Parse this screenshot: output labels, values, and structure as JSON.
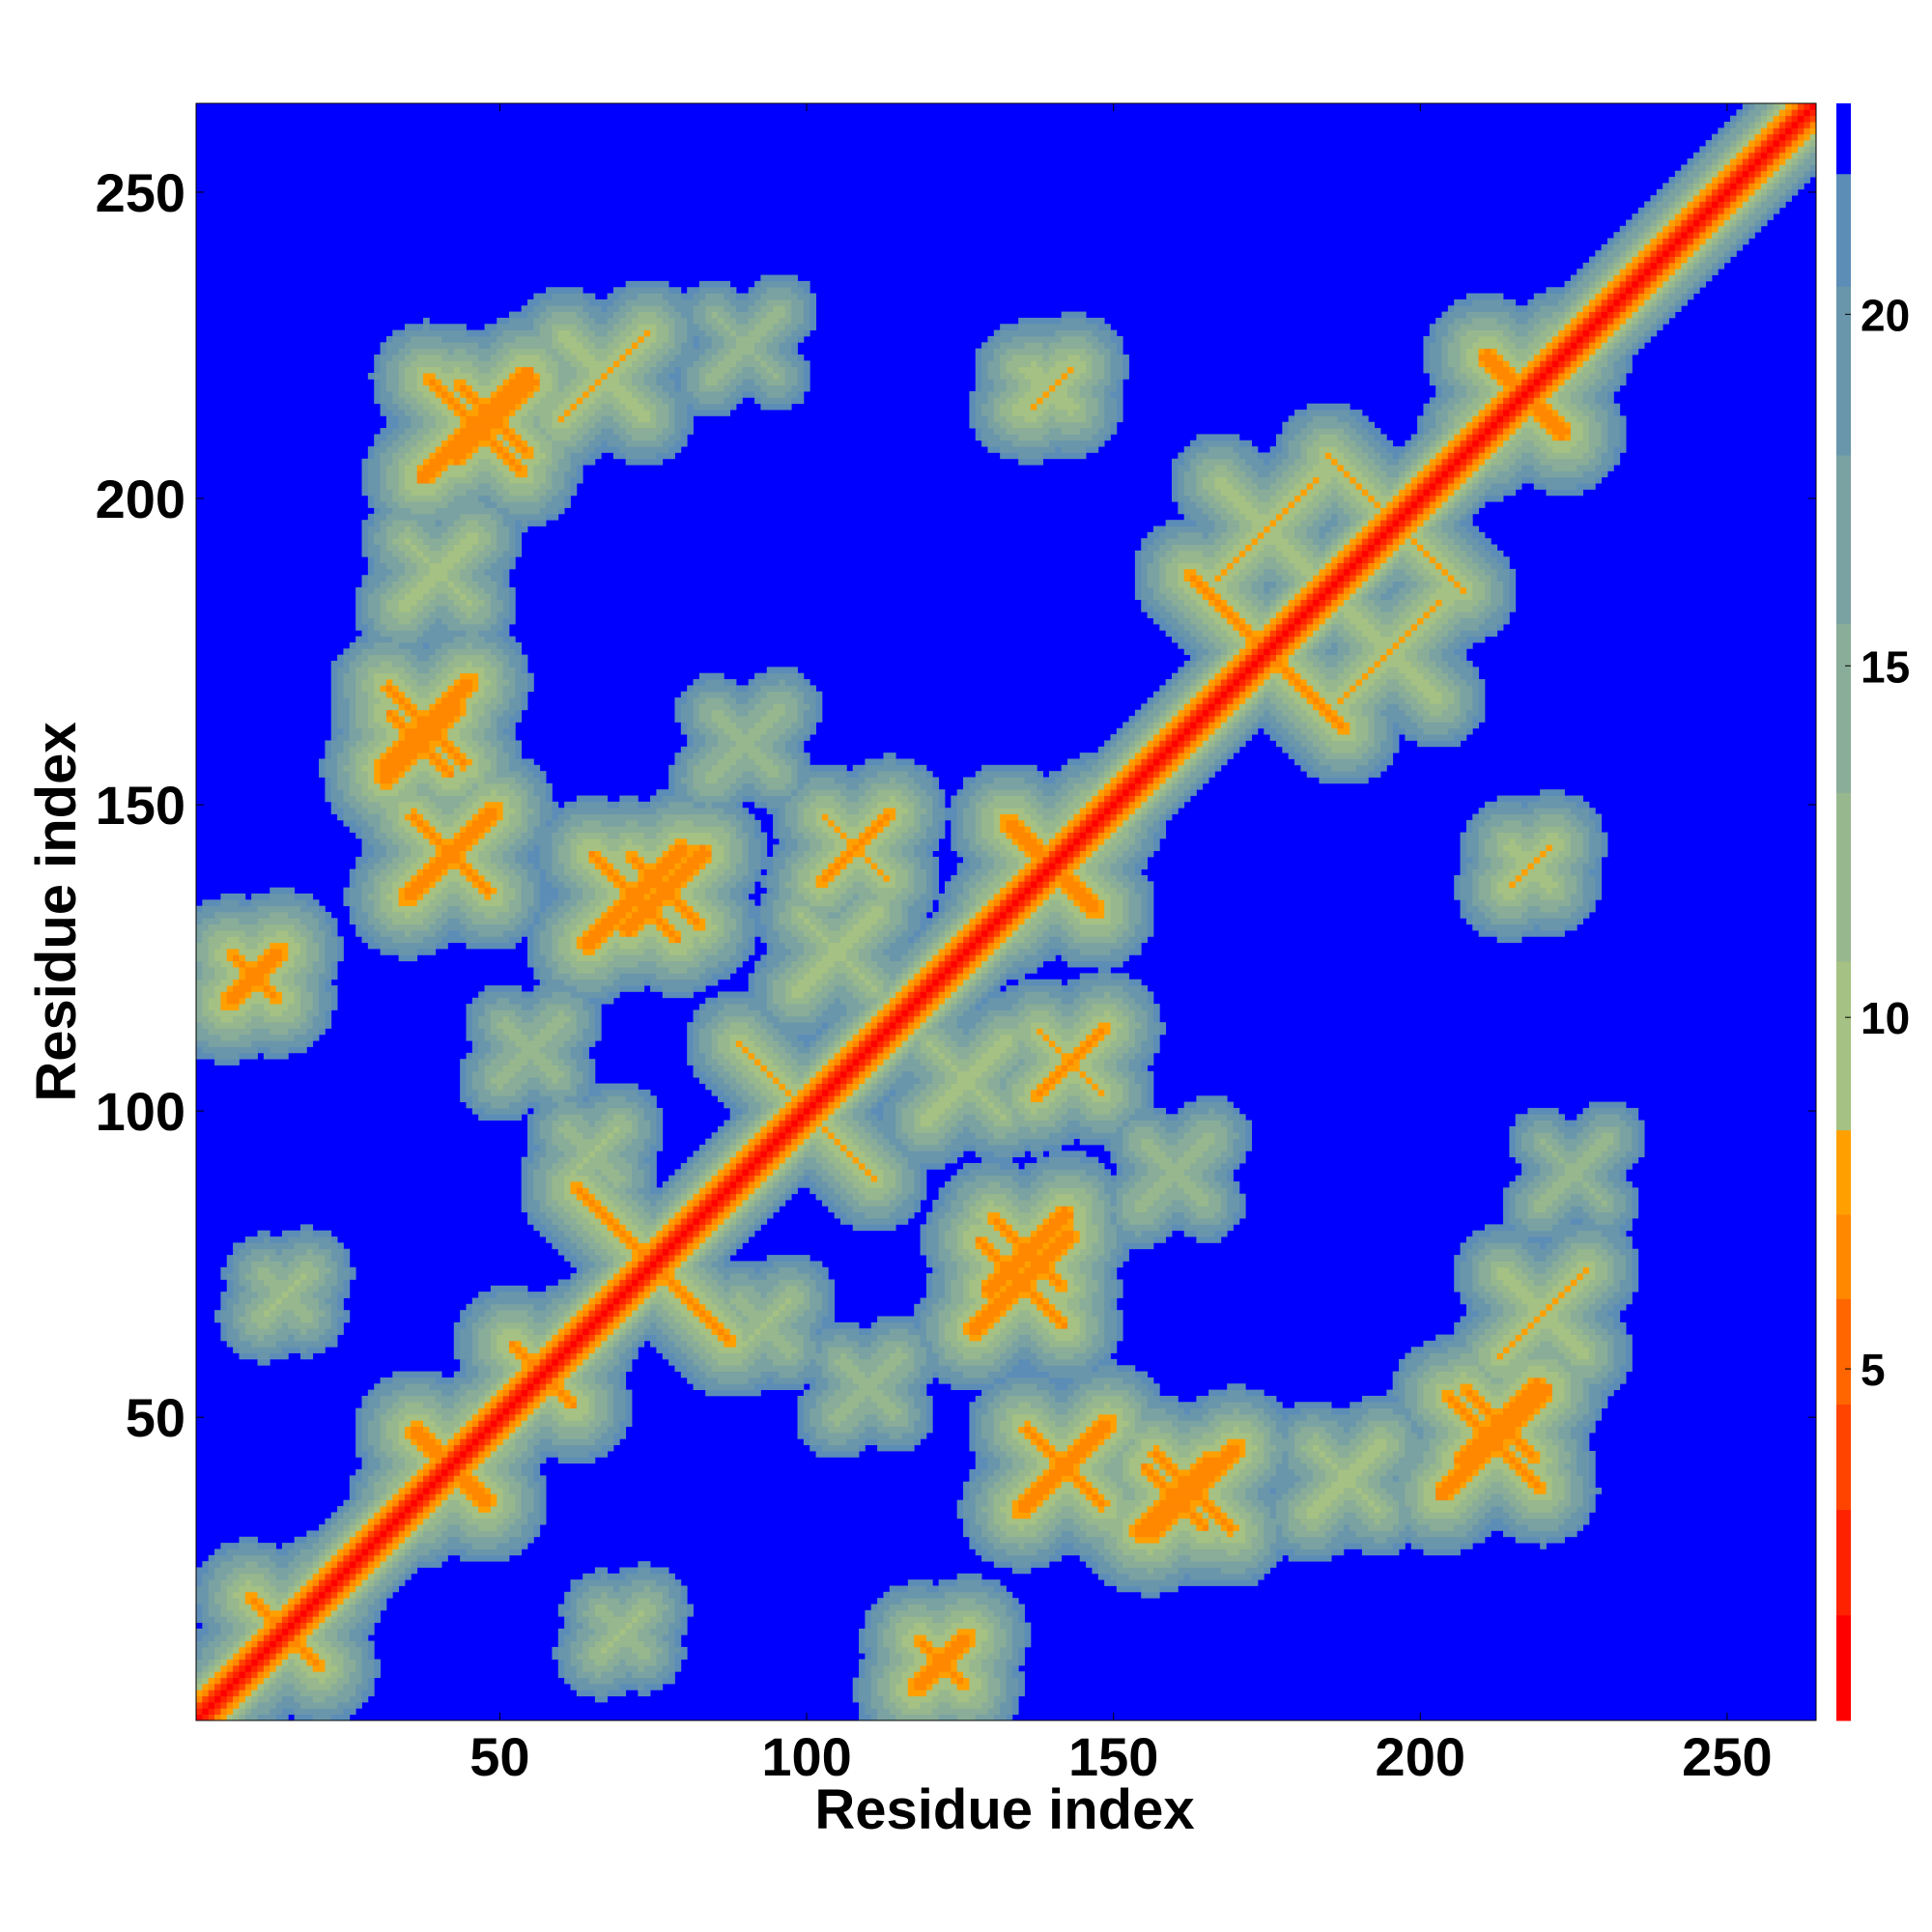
{
  "chart_data": {
    "type": "heatmap",
    "title": "",
    "xlabel": "Residue index",
    "ylabel": "Residue index",
    "n_residues": 264,
    "xlim": [
      1,
      264
    ],
    "ylim": [
      1,
      264
    ],
    "x_ticks": [
      "50",
      "100",
      "150",
      "200",
      "250"
    ],
    "x_tick_values": [
      50,
      100,
      150,
      200,
      250
    ],
    "y_ticks": [
      "50",
      "100",
      "150",
      "200",
      "250"
    ],
    "y_tick_values": [
      50,
      100,
      150,
      200,
      250
    ],
    "grid": false,
    "colorbar": {
      "ticks": [
        "5",
        "10",
        "15",
        "20"
      ],
      "tick_values": [
        5,
        10,
        15,
        20
      ],
      "range": [
        0,
        23
      ],
      "bands": [
        {
          "from": 0,
          "to": 1.5,
          "color": "#ff0000"
        },
        {
          "from": 1.5,
          "to": 3,
          "color": "#ff2200"
        },
        {
          "from": 3,
          "to": 4.5,
          "color": "#ff4400"
        },
        {
          "from": 4.5,
          "to": 6,
          "color": "#ff6600"
        },
        {
          "from": 6,
          "to": 7.2,
          "color": "#ff8800"
        },
        {
          "from": 7.2,
          "to": 8.4,
          "color": "#ffa000"
        },
        {
          "from": 8.4,
          "to": 10.8,
          "color": "#a5c183"
        },
        {
          "from": 10.8,
          "to": 13.2,
          "color": "#97b78e"
        },
        {
          "from": 13.2,
          "to": 15.6,
          "color": "#89ad98"
        },
        {
          "from": 15.6,
          "to": 18,
          "color": "#7aa2a2"
        },
        {
          "from": 18,
          "to": 20.4,
          "color": "#6a96ab"
        },
        {
          "from": 20.4,
          "to": 22,
          "color": "#5c8db7"
        },
        {
          "from": 22,
          "to": 23,
          "color": "#0000ff"
        }
      ]
    },
    "background_color": "#0000ff",
    "diagonal": {
      "width": 1.0,
      "value": 0.5
    },
    "contact_features": [
      {
        "kind": "cross",
        "x": 42,
        "y": 42,
        "len": 9,
        "value": 5
      },
      {
        "kind": "cross",
        "x": 57,
        "y": 57,
        "len": 8,
        "value": 6
      },
      {
        "kind": "cross",
        "x": 140,
        "y": 140,
        "len": 11,
        "value": 5
      },
      {
        "kind": "cross",
        "x": 217,
        "y": 217,
        "len": 10,
        "value": 5
      },
      {
        "kind": "cross",
        "x": 15,
        "y": 15,
        "len": 9,
        "value": 6
      },
      {
        "kind": "anti",
        "x": 79,
        "y": 71,
        "len": 12,
        "value": 7
      },
      {
        "kind": "anti",
        "x": 71,
        "y": 79,
        "len": 12,
        "value": 7
      },
      {
        "kind": "anti",
        "x": 104,
        "y": 96,
        "len": 10,
        "value": 8
      },
      {
        "kind": "anti",
        "x": 96,
        "y": 104,
        "len": 10,
        "value": 8
      },
      {
        "kind": "anti",
        "x": 179,
        "y": 171,
        "len": 12,
        "value": 7
      },
      {
        "kind": "anti",
        "x": 171,
        "y": 179,
        "len": 12,
        "value": 7
      },
      {
        "kind": "anti",
        "x": 200,
        "y": 192,
        "len": 10,
        "value": 8
      },
      {
        "kind": "anti",
        "x": 192,
        "y": 200,
        "len": 10,
        "value": 8
      },
      {
        "kind": "cross",
        "x": 42,
        "y": 142,
        "len": 10,
        "value": 6
      },
      {
        "kind": "cross",
        "x": 142,
        "y": 42,
        "len": 10,
        "value": 6
      },
      {
        "kind": "cross",
        "x": 72,
        "y": 135,
        "len": 11,
        "value": 6
      },
      {
        "kind": "cross",
        "x": 135,
        "y": 72,
        "len": 11,
        "value": 6
      },
      {
        "kind": "cross",
        "x": 46,
        "y": 212,
        "len": 12,
        "value": 6
      },
      {
        "kind": "cross",
        "x": 212,
        "y": 46,
        "len": 12,
        "value": 6
      },
      {
        "kind": "cross",
        "x": 67,
        "y": 220,
        "len": 10,
        "value": 8
      },
      {
        "kind": "cross",
        "x": 220,
        "y": 67,
        "len": 10,
        "value": 8
      },
      {
        "kind": "cross",
        "x": 38,
        "y": 163,
        "len": 10,
        "value": 6
      },
      {
        "kind": "cross",
        "x": 163,
        "y": 38,
        "len": 10,
        "value": 6
      },
      {
        "kind": "cross",
        "x": 108,
        "y": 143,
        "len": 8,
        "value": 7
      },
      {
        "kind": "cross",
        "x": 143,
        "y": 108,
        "len": 8,
        "value": 7
      },
      {
        "kind": "cross",
        "x": 136,
        "y": 77,
        "len": 9,
        "value": 6
      },
      {
        "kind": "cross",
        "x": 77,
        "y": 136,
        "len": 9,
        "value": 6
      },
      {
        "kind": "cross",
        "x": 213,
        "y": 49,
        "len": 9,
        "value": 6
      },
      {
        "kind": "cross",
        "x": 49,
        "y": 213,
        "len": 9,
        "value": 6
      },
      {
        "kind": "cross",
        "x": 218,
        "y": 140,
        "len": 5,
        "value": 8
      },
      {
        "kind": "cross",
        "x": 140,
        "y": 218,
        "len": 5,
        "value": 8
      },
      {
        "kind": "cross",
        "x": 138,
        "y": 218,
        "len": 5,
        "value": 9
      },
      {
        "kind": "cross",
        "x": 160,
        "y": 37,
        "len": 8,
        "value": 6
      },
      {
        "kind": "cross",
        "x": 37,
        "y": 160,
        "len": 8,
        "value": 6
      },
      {
        "kind": "cross",
        "x": 122,
        "y": 10,
        "len": 6,
        "value": 6
      },
      {
        "kind": "cross",
        "x": 10,
        "y": 122,
        "len": 6,
        "value": 6
      },
      {
        "kind": "cross",
        "x": 188,
        "y": 40,
        "len": 8,
        "value": 9
      },
      {
        "kind": "cross",
        "x": 40,
        "y": 188,
        "len": 8,
        "value": 9
      },
      {
        "kind": "cross",
        "x": 126,
        "y": 105,
        "len": 9,
        "value": 9
      },
      {
        "kind": "cross",
        "x": 105,
        "y": 126,
        "len": 9,
        "value": 9
      },
      {
        "kind": "cross",
        "x": 175,
        "y": 195,
        "len": 12,
        "value": 8
      },
      {
        "kind": "cross",
        "x": 195,
        "y": 175,
        "len": 12,
        "value": 8
      },
      {
        "kind": "cross",
        "x": 15,
        "y": 70,
        "len": 5,
        "value": 10
      },
      {
        "kind": "cross",
        "x": 70,
        "y": 15,
        "len": 5,
        "value": 10
      },
      {
        "kind": "cross",
        "x": 93,
        "y": 65,
        "len": 6,
        "value": 10
      },
      {
        "kind": "cross",
        "x": 65,
        "y": 93,
        "len": 6,
        "value": 10
      },
      {
        "kind": "cross",
        "x": 55,
        "y": 110,
        "len": 7,
        "value": 11
      },
      {
        "kind": "cross",
        "x": 110,
        "y": 55,
        "len": 7,
        "value": 11
      },
      {
        "kind": "cross",
        "x": 225,
        "y": 90,
        "len": 8,
        "value": 12
      },
      {
        "kind": "cross",
        "x": 90,
        "y": 225,
        "len": 8,
        "value": 12
      },
      {
        "kind": "cross",
        "x": 160,
        "y": 90,
        "len": 8,
        "value": 11
      },
      {
        "kind": "cross",
        "x": 90,
        "y": 160,
        "len": 8,
        "value": 11
      }
    ]
  }
}
